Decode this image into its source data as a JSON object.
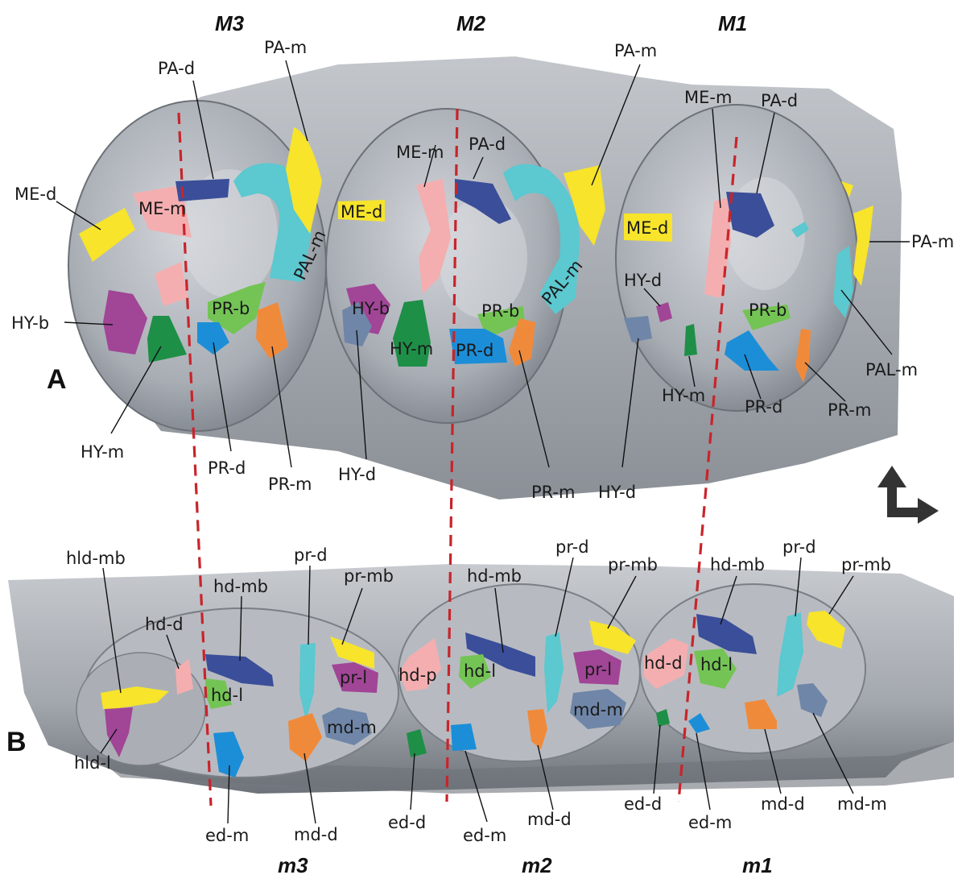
{
  "colors": {
    "yellow": "#f7e42b",
    "pink": "#f4aeb0",
    "navy": "#3b4e99",
    "cyan": "#5cc8d0",
    "purple": "#a14596",
    "green": "#1e8f47",
    "light_green": "#74c455",
    "blue": "#1c8ed8",
    "orange": "#f08a3b",
    "slate": "#6f86a8",
    "red_dash": "#c8242b",
    "enamel": "#b4b8be"
  },
  "panels": {
    "upper": "A",
    "lower": "B"
  },
  "upper_teeth": {
    "M3": "M3",
    "M2": "M2",
    "M1": "M1"
  },
  "lower_teeth": {
    "m3": "m3",
    "m2": "m2",
    "m1": "m1"
  },
  "upper_labels": {
    "pa_d_m3": "PA-d",
    "pa_m_m3": "PA-m",
    "me_d_m3": "ME-d",
    "me_m_m3": "ME-m",
    "pal_m_m3": "PAL-m",
    "pr_b_m3": "PR-b",
    "hy_b_m3": "HY-b",
    "hy_m_m3": "HY-m",
    "pr_d_m3": "PR-d",
    "pr_m_m3": "PR-m",
    "me_m_m2": "ME-m",
    "pa_d_m2": "PA-d",
    "pa_m_m2": "PA-m",
    "me_d_m2": "ME-d",
    "pal_m_m2": "PAL-m",
    "hy_b_m2": "HY-b",
    "hy_m_m2": "HY-m",
    "pr_b_m2": "PR-b",
    "pr_d_m2": "PR-d",
    "hy_d_m2": "HY-d",
    "pr_m_m2": "PR-m",
    "me_m_m1": "ME-m",
    "pa_d_m1": "PA-d",
    "me_d_m1": "ME-d",
    "pa_m_m1": "PA-m",
    "hy_d_m1": "HY-d",
    "pr_b_m1": "PR-b",
    "pal_m_m1": "PAL-m",
    "hy_m_m1": "HY-m",
    "pr_d_m1": "PR-d",
    "pr_m_m1": "PR-m",
    "hy_d_m1_lower": "HY-d"
  },
  "lower_labels": {
    "hld_mb": "hld-mb",
    "hd_d_m3": "hd-d",
    "hd_mb_m3": "hd-mb",
    "pr_d_m3": "pr-d",
    "pr_mb_m3": "pr-mb",
    "hd_l_m3": "hd-l",
    "pr_l_m3": "pr-l",
    "md_m_m3": "md-m",
    "hld_l": "hld-l",
    "ed_m_m3": "ed-m",
    "md_d_m3": "md-d",
    "hd_mb_m2": "hd-mb",
    "pr_d_m2": "pr-d",
    "pr_mb_m2": "pr-mb",
    "hd_p": "hd-p",
    "hd_l_m2": "hd-l",
    "pr_l_m2": "pr-l",
    "md_m_m2": "md-m",
    "ed_d_m2": "ed-d",
    "ed_m_m2": "ed-m",
    "md_d_m2": "md-d",
    "hd_mb_m1": "hd-mb",
    "pr_d_m1": "pr-d",
    "pr_mb_m1": "pr-mb",
    "hd_d_m1": "hd-d",
    "hd_l_m1": "hd-l",
    "ed_d_m1": "ed-d",
    "ed_m_m1": "ed-m",
    "md_d_m1": "md-d",
    "md_m_m1": "md-m"
  },
  "orientation_icon": "up-right-arrow-icon"
}
